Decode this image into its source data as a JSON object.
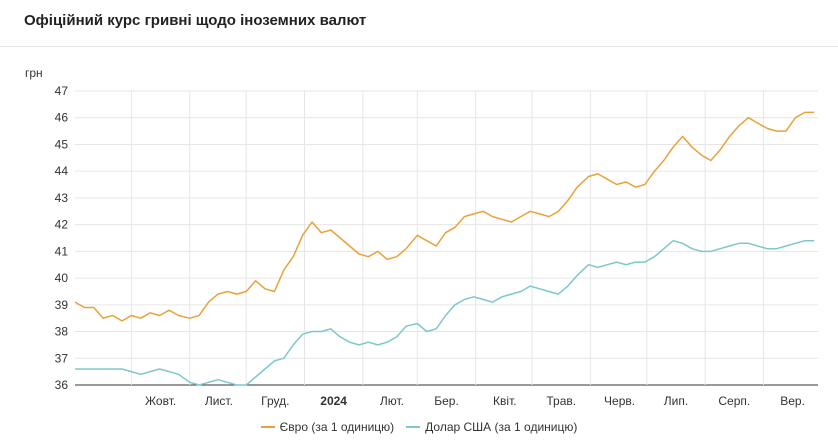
{
  "header": {
    "title": "Офіційний курс гривні щодо іноземних валют"
  },
  "chart_data": {
    "type": "line",
    "title": "Офіційний курс гривні щодо іноземних валют",
    "ylabel": "грн",
    "xlabel": "",
    "ylim": [
      36,
      47
    ],
    "y_ticks": [
      "36",
      "37",
      "38",
      "39",
      "40",
      "41",
      "42",
      "43",
      "44",
      "45",
      "46",
      "47"
    ],
    "x_ticks": [
      {
        "label": "Жовт.",
        "x": "2023-10"
      },
      {
        "label": "Лист.",
        "x": "2023-11"
      },
      {
        "label": "Груд.",
        "x": "2023-12"
      },
      {
        "label": "2024",
        "x": "2024-01",
        "bold": true
      },
      {
        "label": "Лют.",
        "x": "2024-02"
      },
      {
        "label": "Бер.",
        "x": "2024-03"
      },
      {
        "label": "Квіт.",
        "x": "2024-04"
      },
      {
        "label": "Трав.",
        "x": "2024-05"
      },
      {
        "label": "Черв.",
        "x": "2024-06"
      },
      {
        "label": "Лип.",
        "x": "2024-07"
      },
      {
        "label": "Серп.",
        "x": "2024-08"
      },
      {
        "label": "Вер.",
        "x": "2024-09"
      }
    ],
    "grid": true,
    "legend_position": "bottom",
    "series": [
      {
        "name": "Євро (за 1 одиницю)",
        "color": "#e8a23a",
        "points": [
          [
            "2023-09-01",
            39.1
          ],
          [
            "2023-09-06",
            38.9
          ],
          [
            "2023-09-11",
            38.9
          ],
          [
            "2023-09-16",
            38.5
          ],
          [
            "2023-09-21",
            38.6
          ],
          [
            "2023-09-26",
            38.4
          ],
          [
            "2023-10-01",
            38.6
          ],
          [
            "2023-10-06",
            38.5
          ],
          [
            "2023-10-11",
            38.7
          ],
          [
            "2023-10-16",
            38.6
          ],
          [
            "2023-10-21",
            38.8
          ],
          [
            "2023-10-26",
            38.6
          ],
          [
            "2023-11-01",
            38.5
          ],
          [
            "2023-11-06",
            38.6
          ],
          [
            "2023-11-11",
            39.1
          ],
          [
            "2023-11-16",
            39.4
          ],
          [
            "2023-11-21",
            39.5
          ],
          [
            "2023-11-26",
            39.4
          ],
          [
            "2023-12-01",
            39.5
          ],
          [
            "2023-12-06",
            39.9
          ],
          [
            "2023-12-11",
            39.6
          ],
          [
            "2023-12-16",
            39.5
          ],
          [
            "2023-12-21",
            40.3
          ],
          [
            "2023-12-26",
            40.8
          ],
          [
            "2023-12-31",
            41.6
          ],
          [
            "2024-01-05",
            42.1
          ],
          [
            "2024-01-10",
            41.7
          ],
          [
            "2024-01-15",
            41.8
          ],
          [
            "2024-01-20",
            41.5
          ],
          [
            "2024-01-25",
            41.2
          ],
          [
            "2024-01-30",
            40.9
          ],
          [
            "2024-02-04",
            40.8
          ],
          [
            "2024-02-09",
            41.0
          ],
          [
            "2024-02-14",
            40.7
          ],
          [
            "2024-02-19",
            40.8
          ],
          [
            "2024-02-24",
            41.1
          ],
          [
            "2024-03-01",
            41.6
          ],
          [
            "2024-03-06",
            41.4
          ],
          [
            "2024-03-11",
            41.2
          ],
          [
            "2024-03-16",
            41.7
          ],
          [
            "2024-03-21",
            41.9
          ],
          [
            "2024-03-26",
            42.3
          ],
          [
            "2024-03-31",
            42.4
          ],
          [
            "2024-04-05",
            42.5
          ],
          [
            "2024-04-10",
            42.3
          ],
          [
            "2024-04-15",
            42.2
          ],
          [
            "2024-04-20",
            42.1
          ],
          [
            "2024-04-25",
            42.3
          ],
          [
            "2024-04-30",
            42.5
          ],
          [
            "2024-05-05",
            42.4
          ],
          [
            "2024-05-10",
            42.3
          ],
          [
            "2024-05-15",
            42.5
          ],
          [
            "2024-05-20",
            42.9
          ],
          [
            "2024-05-25",
            43.4
          ],
          [
            "2024-05-31",
            43.8
          ],
          [
            "2024-06-05",
            43.9
          ],
          [
            "2024-06-10",
            43.7
          ],
          [
            "2024-06-15",
            43.5
          ],
          [
            "2024-06-20",
            43.6
          ],
          [
            "2024-06-25",
            43.4
          ],
          [
            "2024-06-30",
            43.5
          ],
          [
            "2024-07-05",
            44.0
          ],
          [
            "2024-07-10",
            44.4
          ],
          [
            "2024-07-15",
            44.9
          ],
          [
            "2024-07-20",
            45.3
          ],
          [
            "2024-07-25",
            44.9
          ],
          [
            "2024-07-30",
            44.6
          ],
          [
            "2024-08-04",
            44.4
          ],
          [
            "2024-08-09",
            44.8
          ],
          [
            "2024-08-14",
            45.3
          ],
          [
            "2024-08-19",
            45.7
          ],
          [
            "2024-08-24",
            46.0
          ],
          [
            "2024-08-29",
            45.8
          ],
          [
            "2024-09-03",
            45.6
          ],
          [
            "2024-09-08",
            45.5
          ],
          [
            "2024-09-13",
            45.5
          ],
          [
            "2024-09-18",
            46.0
          ],
          [
            "2024-09-23",
            46.2
          ],
          [
            "2024-09-28",
            46.2
          ]
        ]
      },
      {
        "name": "Долар США (за 1 одиницю)",
        "color": "#7cc8cc",
        "points": [
          [
            "2023-09-01",
            36.6
          ],
          [
            "2023-09-06",
            36.6
          ],
          [
            "2023-09-11",
            36.6
          ],
          [
            "2023-09-16",
            36.6
          ],
          [
            "2023-09-21",
            36.6
          ],
          [
            "2023-09-26",
            36.6
          ],
          [
            "2023-10-01",
            36.5
          ],
          [
            "2023-10-06",
            36.4
          ],
          [
            "2023-10-11",
            36.5
          ],
          [
            "2023-10-16",
            36.6
          ],
          [
            "2023-10-21",
            36.5
          ],
          [
            "2023-10-26",
            36.4
          ],
          [
            "2023-11-01",
            36.1
          ],
          [
            "2023-11-06",
            36.0
          ],
          [
            "2023-11-11",
            36.1
          ],
          [
            "2023-11-16",
            36.2
          ],
          [
            "2023-11-21",
            36.1
          ],
          [
            "2023-11-26",
            36.0
          ],
          [
            "2023-12-01",
            36.0
          ],
          [
            "2023-12-06",
            36.3
          ],
          [
            "2023-12-11",
            36.6
          ],
          [
            "2023-12-16",
            36.9
          ],
          [
            "2023-12-21",
            37.0
          ],
          [
            "2023-12-26",
            37.5
          ],
          [
            "2023-12-31",
            37.9
          ],
          [
            "2024-01-05",
            38.0
          ],
          [
            "2024-01-10",
            38.0
          ],
          [
            "2024-01-15",
            38.1
          ],
          [
            "2024-01-20",
            37.8
          ],
          [
            "2024-01-25",
            37.6
          ],
          [
            "2024-01-30",
            37.5
          ],
          [
            "2024-02-04",
            37.6
          ],
          [
            "2024-02-09",
            37.5
          ],
          [
            "2024-02-14",
            37.6
          ],
          [
            "2024-02-19",
            37.8
          ],
          [
            "2024-02-24",
            38.2
          ],
          [
            "2024-03-01",
            38.3
          ],
          [
            "2024-03-06",
            38.0
          ],
          [
            "2024-03-11",
            38.1
          ],
          [
            "2024-03-16",
            38.6
          ],
          [
            "2024-03-21",
            39.0
          ],
          [
            "2024-03-26",
            39.2
          ],
          [
            "2024-03-31",
            39.3
          ],
          [
            "2024-04-05",
            39.2
          ],
          [
            "2024-04-10",
            39.1
          ],
          [
            "2024-04-15",
            39.3
          ],
          [
            "2024-04-20",
            39.4
          ],
          [
            "2024-04-25",
            39.5
          ],
          [
            "2024-04-30",
            39.7
          ],
          [
            "2024-05-05",
            39.6
          ],
          [
            "2024-05-10",
            39.5
          ],
          [
            "2024-05-15",
            39.4
          ],
          [
            "2024-05-20",
            39.7
          ],
          [
            "2024-05-25",
            40.1
          ],
          [
            "2024-05-31",
            40.5
          ],
          [
            "2024-06-05",
            40.4
          ],
          [
            "2024-06-10",
            40.5
          ],
          [
            "2024-06-15",
            40.6
          ],
          [
            "2024-06-20",
            40.5
          ],
          [
            "2024-06-25",
            40.6
          ],
          [
            "2024-06-30",
            40.6
          ],
          [
            "2024-07-05",
            40.8
          ],
          [
            "2024-07-10",
            41.1
          ],
          [
            "2024-07-15",
            41.4
          ],
          [
            "2024-07-20",
            41.3
          ],
          [
            "2024-07-25",
            41.1
          ],
          [
            "2024-07-30",
            41.0
          ],
          [
            "2024-08-04",
            41.0
          ],
          [
            "2024-08-09",
            41.1
          ],
          [
            "2024-08-14",
            41.2
          ],
          [
            "2024-08-19",
            41.3
          ],
          [
            "2024-08-24",
            41.3
          ],
          [
            "2024-08-29",
            41.2
          ],
          [
            "2024-09-03",
            41.1
          ],
          [
            "2024-09-08",
            41.1
          ],
          [
            "2024-09-13",
            41.2
          ],
          [
            "2024-09-18",
            41.3
          ],
          [
            "2024-09-23",
            41.4
          ],
          [
            "2024-09-28",
            41.4
          ]
        ]
      }
    ]
  }
}
